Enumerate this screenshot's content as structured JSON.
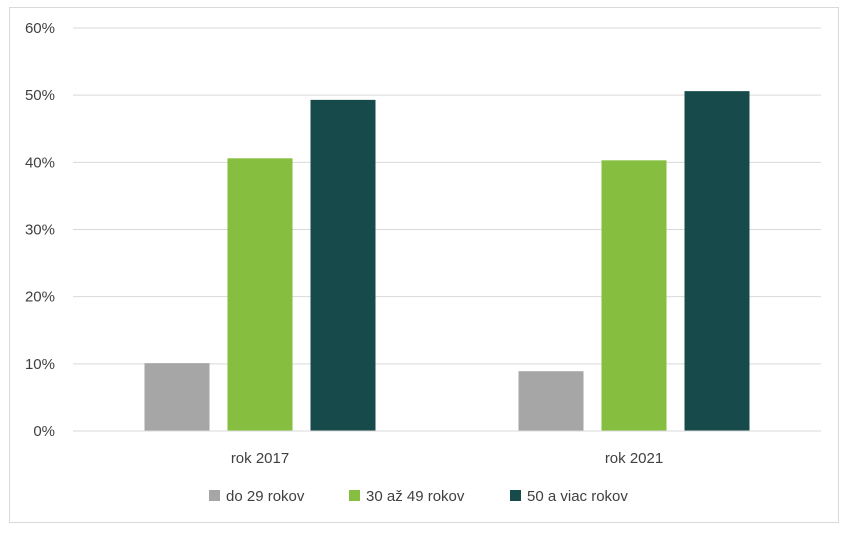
{
  "chart_data": {
    "type": "bar",
    "title": "",
    "xlabel": "",
    "ylabel": "",
    "categories": [
      "rok 2017",
      "rok 2021"
    ],
    "series": [
      {
        "name": "do 29 rokov",
        "values": [
          10.1,
          8.9
        ],
        "color": "#a6a6a6"
      },
      {
        "name": "30 až 49 rokov",
        "values": [
          40.6,
          40.3
        ],
        "color": "#86bf40"
      },
      {
        "name": "50 a viac rokov",
        "values": [
          49.3,
          50.6
        ],
        "color": "#174b4b"
      }
    ],
    "ylim": [
      0,
      60
    ],
    "yticks": [
      "0%",
      "10%",
      "20%",
      "30%",
      "40%",
      "50%",
      "60%"
    ],
    "ytick_values": [
      0,
      10,
      20,
      30,
      40,
      50,
      60
    ],
    "grid": true,
    "legend_position": "bottom",
    "gridline_color": "#d9d9d9"
  }
}
